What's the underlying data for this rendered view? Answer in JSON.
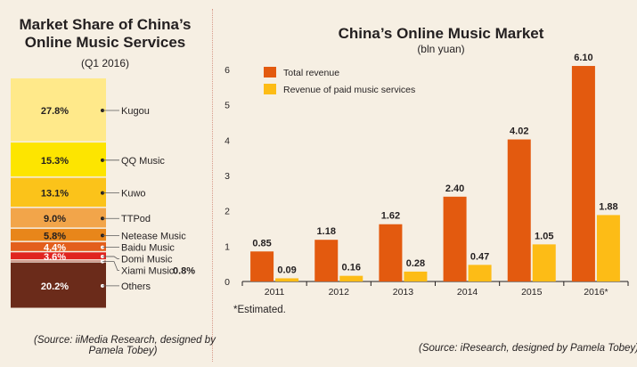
{
  "left": {
    "title_line1": "Market Share of China’s",
    "title_line2": "Online Music Services",
    "subtitle": "(Q1 2016)",
    "source_line1": "(Source: iiMedia Research, designed by",
    "source_line2": "Pamela Tobey)"
  },
  "right": {
    "title": "China’s Online Music Market",
    "subtitle": "(bln yuan)",
    "note": "*Estimated.",
    "source": "(Source: iResearch, designed by Pamela Tobey)"
  },
  "chart_data": [
    {
      "type": "bar",
      "stacked": true,
      "title": "Market Share of China’s Online Music Services",
      "subtitle": "(Q1 2016)",
      "unit": "%",
      "segments": [
        {
          "name": "Kugou",
          "value": 27.8,
          "label": "27.8%",
          "color": "#ffe98a"
        },
        {
          "name": "QQ Music",
          "value": 15.3,
          "label": "15.3%",
          "color": "#fde500"
        },
        {
          "name": "Kuwo",
          "value": 13.1,
          "label": "13.1%",
          "color": "#fbc31a"
        },
        {
          "name": "TTPod",
          "value": 9.0,
          "label": "9.0%",
          "color": "#f2a54a"
        },
        {
          "name": "Netease Music",
          "value": 5.8,
          "label": "5.8%",
          "color": "#e8861a"
        },
        {
          "name": "Baidu Music",
          "value": 4.4,
          "label": "4.4%",
          "color": "#e35f1c"
        },
        {
          "name": "Domi Music",
          "value": 3.6,
          "label": "3.6%",
          "color": "#e0241f"
        },
        {
          "name": "Xiami Music",
          "value": 0.8,
          "label": "0.8%",
          "color": "#9e2a1b"
        },
        {
          "name": "Others",
          "value": 20.2,
          "label": "20.2%",
          "color": "#6b2b1a"
        }
      ]
    },
    {
      "type": "bar",
      "title": "China’s Online Music Market",
      "subtitle": "(bln yuan)",
      "categories": [
        "2011",
        "2012",
        "2013",
        "2014",
        "2015",
        "2016*"
      ],
      "series": [
        {
          "name": "Total revenue",
          "color": "#e35a0f",
          "values": [
            0.85,
            1.18,
            1.62,
            2.4,
            4.02,
            6.1
          ],
          "labels": [
            "0.85",
            "1.18",
            "1.62",
            "2.40",
            "4.02",
            "6.10"
          ]
        },
        {
          "name": "Revenue of paid music services",
          "color": "#fdbc16",
          "values": [
            0.09,
            0.16,
            0.28,
            0.47,
            1.05,
            1.88
          ],
          "labels": [
            "0.09",
            "0.16",
            "0.28",
            "0.47",
            "1.05",
            "1.88"
          ]
        }
      ],
      "ylim": [
        0,
        6
      ],
      "yticks": [
        0,
        1,
        2,
        3,
        4,
        5,
        6
      ],
      "grid": false,
      "legend": "top-left"
    }
  ]
}
